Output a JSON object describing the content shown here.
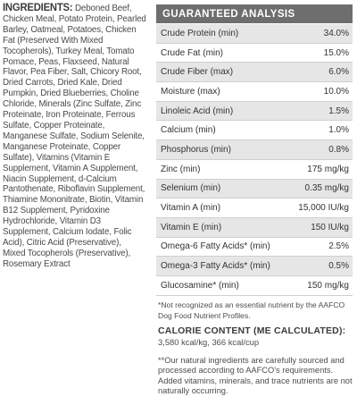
{
  "ingredients": {
    "label": "INGREDIENTS:",
    "text": " Deboned Beef, Chicken Meal, Potato Protein, Pearled Barley, Oatmeal, Potatoes, Chicken Fat (Preserved With Mixed Tocopherols), Turkey Meal, Tomato Pomace, Peas, Flaxseed, Natural Flavor, Pea Fiber, Salt, Chicory Root, Dried Carrots, Dried Kale, Dried Pumpkin, Dried Blueberries, Choline Chloride, Minerals (Zinc Sulfate, Zinc Proteinate, Iron Proteinate, Ferrous Sulfate, Copper Proteinate, Manganese Sulfate, Sodium Selenite, Manganese Proteinate, Copper Sulfate), Vitamins (Vitamin E Supplement, Vitamin A Supplement, Niacin Supplement, d-Calcium Pantothenate, Riboflavin Supplement, Thiamine Mononitrate, Biotin, Vitamin B12 Supplement, Pyridoxine Hydrochloride, Vitamin D3 Supplement, Calcium Iodate, Folic Acid), Citric Acid (Preservative), Mixed Tocopherols (Preservative), Rosemary Extract"
  },
  "analysis": {
    "header": "GUARANTEED ANALYSIS",
    "rows": [
      {
        "name": "Crude Protein (min)",
        "value": "34.0%"
      },
      {
        "name": "Crude Fat (min)",
        "value": "15.0%"
      },
      {
        "name": "Crude Fiber (max)",
        "value": "6.0%"
      },
      {
        "name": "Moisture (max)",
        "value": "10.0%"
      },
      {
        "name": "Linoleic Acid (min)",
        "value": "1.5%"
      },
      {
        "name": "Calcium (min)",
        "value": "1.0%"
      },
      {
        "name": "Phosphorus (min)",
        "value": "0.8%"
      },
      {
        "name": "Zinc (min)",
        "value": "175 mg/kg"
      },
      {
        "name": "Selenium (min)",
        "value": "0.35 mg/kg"
      },
      {
        "name": "Vitamin A (min)",
        "value": "15,000 IU/kg"
      },
      {
        "name": "Vitamin E (min)",
        "value": "150 IU/kg"
      },
      {
        "name": "Omega-6 Fatty Acids* (min)",
        "value": "2.5%"
      },
      {
        "name": "Omega-3 Fatty Acids* (min)",
        "value": "0.5%"
      },
      {
        "name": "Glucosamine* (min)",
        "value": "150 mg/kg"
      }
    ],
    "footnote": "*Not recognized as an essential nutrient by the AAFCO Dog Food Nutrient Profiles.",
    "calorie_title": "CALORIE CONTENT (ME CALCULATED):",
    "calorie_value": "3,580 kcal/kg, 366 kcal/cup",
    "natural_note": "**Our natural ingredients are carefully sourced and processed according to AAFCO's requirements. Added vitamins, minerals, and trace nutrients are not naturally occurring."
  },
  "colors": {
    "header_bg": "#6e6e6e",
    "row_shade": "#e6e6e6",
    "text": "#3f3f3f"
  }
}
